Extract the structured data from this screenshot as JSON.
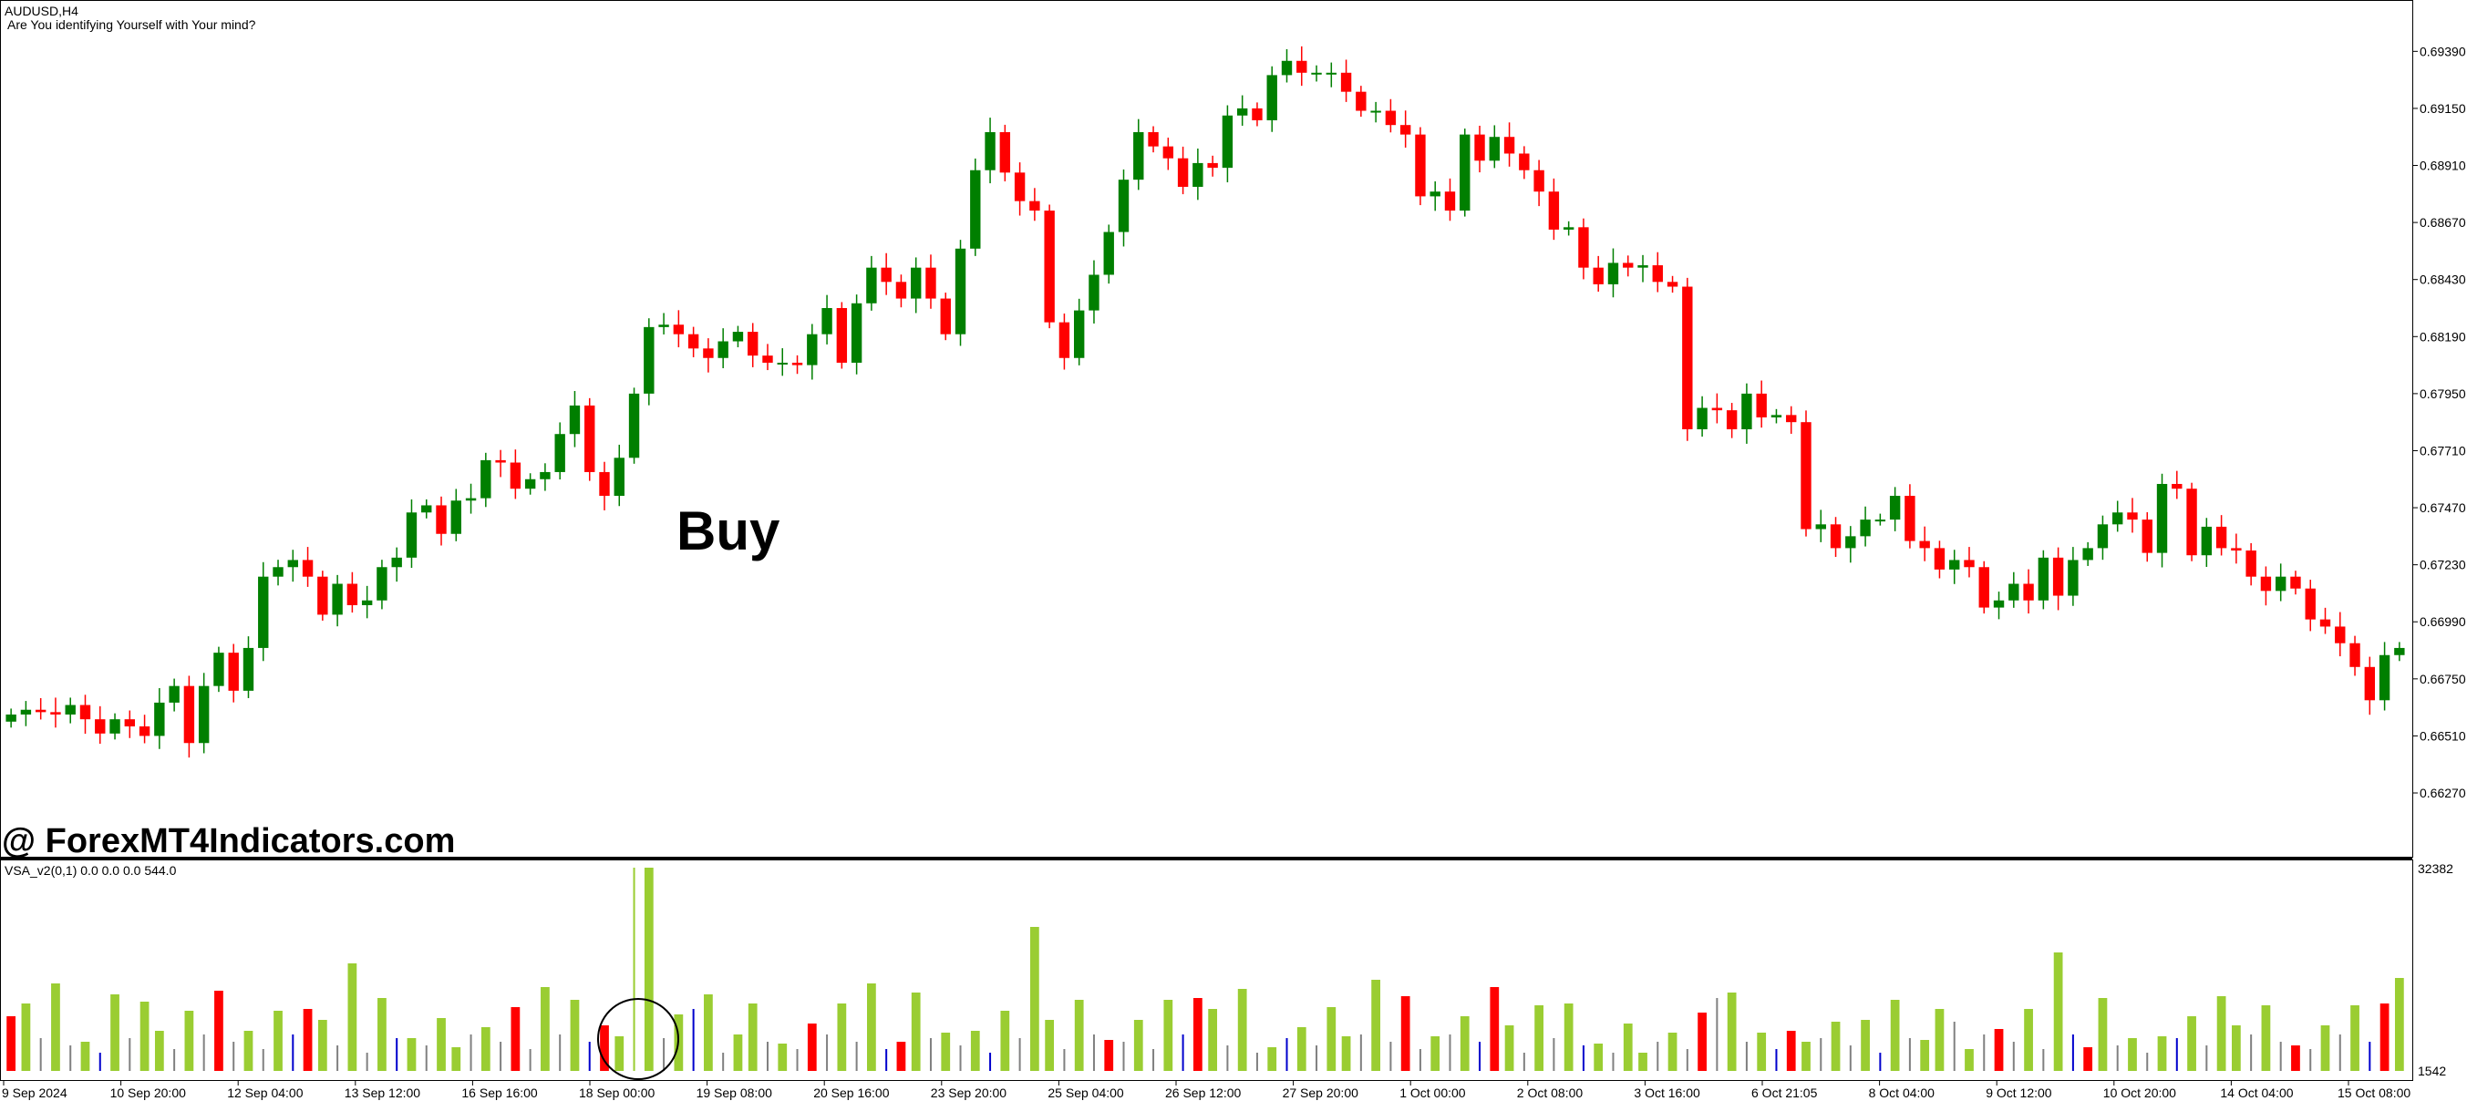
{
  "window": {
    "symbol_title": "AUDUSD,H4",
    "subtitle": "Are You identifying Yourself with Your mind?"
  },
  "annotations": {
    "buy_text": "Buy",
    "watermark": "@ ForexMT4Indicators.com"
  },
  "indicator": {
    "name_line": "VSA_v2(0,1) 0.0 0.0 0.0 544.0",
    "scale_top": "32382",
    "scale_bottom": "1542"
  },
  "colors": {
    "bull": "#007f00",
    "bear": "#ff0000",
    "vol_normal": "#9acd32",
    "vol_high_red": "#ff0000",
    "vol_blue": "#0000cd",
    "vol_gray": "#808080",
    "axis": "#000000"
  },
  "chart_data": {
    "type": "candlestick",
    "price_axis_ticks": [
      "0.69390",
      "0.69150",
      "0.68910",
      "0.68670",
      "0.68430",
      "0.68190",
      "0.67950",
      "0.67710",
      "0.67470",
      "0.67230",
      "0.66990",
      "0.66750",
      "0.66510",
      "0.66270"
    ],
    "price_range": [
      0.6604,
      0.6956
    ],
    "time_axis_labels": [
      "9 Sep 2024",
      "10 Sep 20:00",
      "12 Sep 04:00",
      "13 Sep 12:00",
      "16 Sep 16:00",
      "18 Sep 00:00",
      "19 Sep 08:00",
      "20 Sep 16:00",
      "23 Sep 20:00",
      "25 Sep 04:00",
      "26 Sep 12:00",
      "27 Sep 20:00",
      "1 Oct 00:00",
      "2 Oct 08:00",
      "3 Oct 16:00",
      "6 Oct 21:05",
      "8 Oct 04:00",
      "9 Oct 12:00",
      "10 Oct 20:00",
      "14 Oct 04:00",
      "15 Oct 08:00"
    ],
    "candle_closes": [
      0.666,
      0.6662,
      0.6661,
      0.666,
      0.6664,
      0.6658,
      0.6652,
      0.6658,
      0.6655,
      0.6651,
      0.6665,
      0.6672,
      0.6648,
      0.6672,
      0.6686,
      0.667,
      0.6688,
      0.6718,
      0.6722,
      0.6725,
      0.6718,
      0.6702,
      0.6715,
      0.6706,
      0.6708,
      0.6722,
      0.6726,
      0.6745,
      0.6748,
      0.6736,
      0.675,
      0.6751,
      0.6767,
      0.6766,
      0.6755,
      0.6759,
      0.6762,
      0.6778,
      0.679,
      0.6762,
      0.6752,
      0.6768,
      0.6795,
      0.6823,
      0.6824,
      0.682,
      0.6814,
      0.681,
      0.6817,
      0.6821,
      0.6811,
      0.6808,
      0.6808,
      0.6807,
      0.682,
      0.6831,
      0.6808,
      0.6833,
      0.6848,
      0.6842,
      0.6835,
      0.6848,
      0.6835,
      0.682,
      0.6856,
      0.6889,
      0.6905,
      0.6888,
      0.6876,
      0.6872,
      0.6825,
      0.681,
      0.683,
      0.6845,
      0.6863,
      0.6885,
      0.6905,
      0.6899,
      0.6894,
      0.6882,
      0.6892,
      0.689,
      0.6912,
      0.6915,
      0.691,
      0.6929,
      0.6935,
      0.693,
      0.693,
      0.693,
      0.6922,
      0.6914,
      0.6914,
      0.6908,
      0.6904,
      0.6878,
      0.688,
      0.6872,
      0.6904,
      0.6893,
      0.6903,
      0.6896,
      0.6889,
      0.688,
      0.6864,
      0.6865,
      0.6848,
      0.6841,
      0.685,
      0.6848,
      0.6849,
      0.6842,
      0.684,
      0.678,
      0.6789,
      0.6788,
      0.678,
      0.6795,
      0.6785,
      0.6786,
      0.6783,
      0.6738,
      0.674,
      0.673,
      0.6735,
      0.6742,
      0.6742,
      0.6752,
      0.6733,
      0.673,
      0.6721,
      0.6725,
      0.6722,
      0.6705,
      0.6708,
      0.6715,
      0.6708,
      0.6726,
      0.671,
      0.6725,
      0.673,
      0.674,
      0.6745,
      0.6742,
      0.6728,
      0.6757,
      0.6755,
      0.6727,
      0.6739,
      0.673,
      0.6729,
      0.6718,
      0.6712,
      0.6718,
      0.6713,
      0.67,
      0.6697,
      0.669,
      0.668,
      0.6666,
      0.6685,
      0.6688
    ],
    "volume_bar_colors_pattern": [
      "red",
      "green",
      "gray",
      "green",
      "gray",
      "green",
      "blue",
      "green",
      "gray",
      "green",
      "green",
      "gray",
      "green",
      "gray",
      "red",
      "gray",
      "green",
      "gray",
      "green",
      "blue"
    ],
    "volume_spike": {
      "label": "18 Sep 00:00",
      "value": 32382
    }
  }
}
